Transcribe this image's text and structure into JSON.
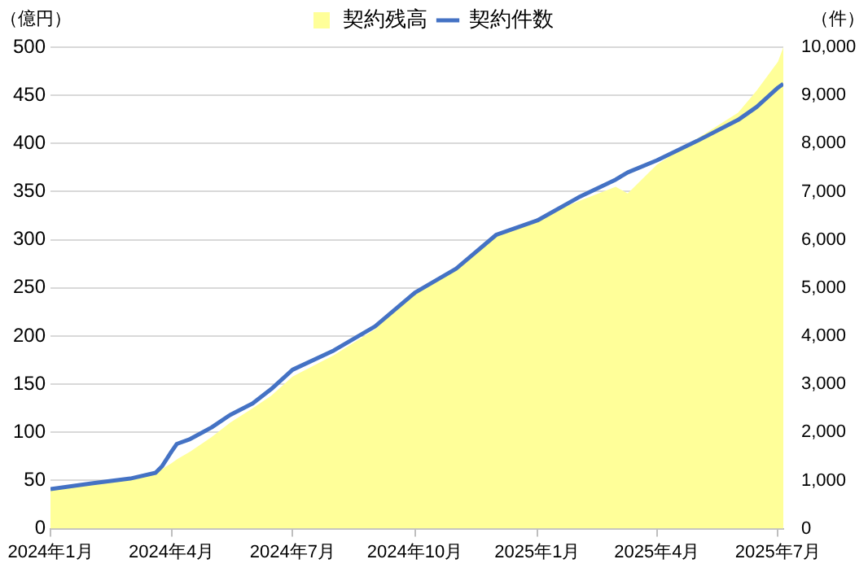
{
  "chart_data": {
    "type": "area",
    "ylabel": "（億円）",
    "y2label": "（件）",
    "x": [
      "2024-01-01",
      "2024-02-01",
      "2024-03-01",
      "2024-03-20",
      "2024-03-25",
      "2024-04-01",
      "2024-04-05",
      "2024-04-15",
      "2024-05-01",
      "2024-05-15",
      "2024-06-01",
      "2024-06-15",
      "2024-07-01",
      "2024-08-01",
      "2024-09-01",
      "2024-10-01",
      "2024-11-01",
      "2024-12-01",
      "2025-01-01",
      "2025-02-01",
      "2025-03-01",
      "2025-03-10",
      "2025-04-01",
      "2025-05-01",
      "2025-06-01",
      "2025-06-15",
      "2025-07-01",
      "2025-07-05"
    ],
    "series": [
      {
        "name": "契約残高",
        "type": "area",
        "color": "#ffff99",
        "values": [
          40,
          46,
          51,
          57,
          62,
          68,
          72,
          80,
          95,
          110,
          125,
          138,
          158,
          180,
          207,
          245,
          270,
          306,
          322,
          340,
          355,
          348,
          378,
          405,
          432,
          455,
          485,
          500
        ]
      },
      {
        "name": "契約件数",
        "type": "line",
        "axis": "y2",
        "color": "#4472c4",
        "values": [
          820,
          940,
          1040,
          1160,
          1300,
          1600,
          1760,
          1860,
          2100,
          2360,
          2600,
          2900,
          3300,
          3700,
          4200,
          4900,
          5400,
          6100,
          6400,
          6880,
          7250,
          7400,
          7650,
          8050,
          8490,
          8760,
          9160,
          9240
        ]
      }
    ],
    "xlim": [
      "2024-01-01",
      "2025-07-05"
    ],
    "xticks": [
      {
        "value": "2024-01-01",
        "label": "2024年1月"
      },
      {
        "value": "2024-04-01",
        "label": "2024年4月"
      },
      {
        "value": "2024-07-01",
        "label": "2024年7月"
      },
      {
        "value": "2024-10-01",
        "label": "2024年10月"
      },
      {
        "value": "2025-01-01",
        "label": "2025年1月"
      },
      {
        "value": "2025-04-01",
        "label": "2025年4月"
      },
      {
        "value": "2025-07-01",
        "label": "2025年7月"
      }
    ],
    "ylim": [
      0,
      500
    ],
    "yticks": [
      0,
      50,
      100,
      150,
      200,
      250,
      300,
      350,
      400,
      450,
      500
    ],
    "y2lim": [
      0,
      10000
    ],
    "y2ticks": [
      0,
      {
        "value": 1000,
        "label": "1,000"
      },
      {
        "value": 2000,
        "label": "2,000"
      },
      {
        "value": 3000,
        "label": "3,000"
      },
      {
        "value": 4000,
        "label": "4,000"
      },
      {
        "value": 5000,
        "label": "5,000"
      },
      {
        "value": 6000,
        "label": "6,000"
      },
      {
        "value": 7000,
        "label": "7,000"
      },
      {
        "value": 8000,
        "label": "8,000"
      },
      {
        "value": 9000,
        "label": "9,000"
      },
      {
        "value": 10000,
        "label": "10,000"
      }
    ],
    "grid": "y",
    "legend": "top",
    "marker": "none",
    "line_style": "solid"
  }
}
